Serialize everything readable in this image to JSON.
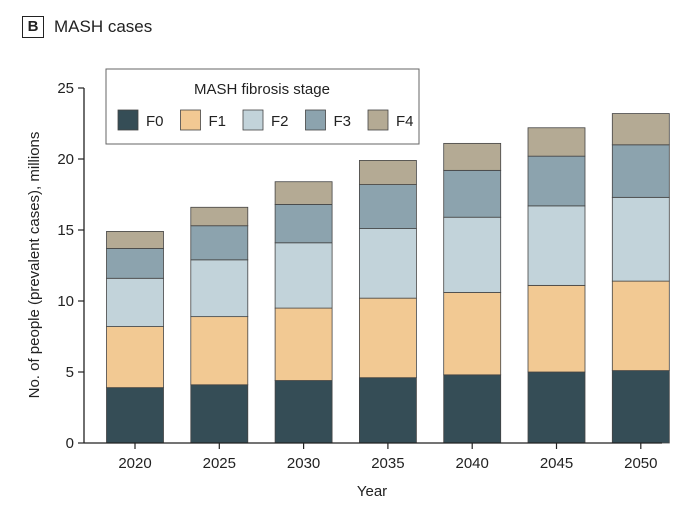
{
  "panel": {
    "letter": "B",
    "title": "MASH cases"
  },
  "colors": {
    "F0": "#354d56",
    "F1": "#f2c993",
    "F2": "#c2d3da",
    "F3": "#8ca3ae",
    "F4": "#b4aa94",
    "bar_stroke": "#444444",
    "axis": "#222222"
  },
  "chart_data": {
    "type": "bar",
    "stacked": true,
    "title": "",
    "xlabel": "Year",
    "ylabel": "No. of people (prevalent cases), millions",
    "ylim": [
      0,
      25
    ],
    "yticks": [
      0,
      5,
      10,
      15,
      20,
      25
    ],
    "categories": [
      "2020",
      "2025",
      "2030",
      "2035",
      "2040",
      "2045",
      "2050"
    ],
    "legend": {
      "title": "MASH fibrosis stage",
      "position": "top-left",
      "entries": [
        "F0",
        "F1",
        "F2",
        "F3",
        "F4"
      ]
    },
    "series": [
      {
        "name": "F0",
        "values": [
          3.9,
          4.1,
          4.4,
          4.6,
          4.8,
          5.0,
          5.1
        ]
      },
      {
        "name": "F1",
        "values": [
          4.3,
          4.8,
          5.1,
          5.6,
          5.8,
          6.1,
          6.3
        ]
      },
      {
        "name": "F2",
        "values": [
          3.4,
          4.0,
          4.6,
          4.9,
          5.3,
          5.6,
          5.9
        ]
      },
      {
        "name": "F3",
        "values": [
          2.1,
          2.4,
          2.7,
          3.1,
          3.3,
          3.5,
          3.7
        ]
      },
      {
        "name": "F4",
        "values": [
          1.2,
          1.3,
          1.6,
          1.7,
          1.9,
          2.0,
          2.2
        ]
      }
    ]
  }
}
